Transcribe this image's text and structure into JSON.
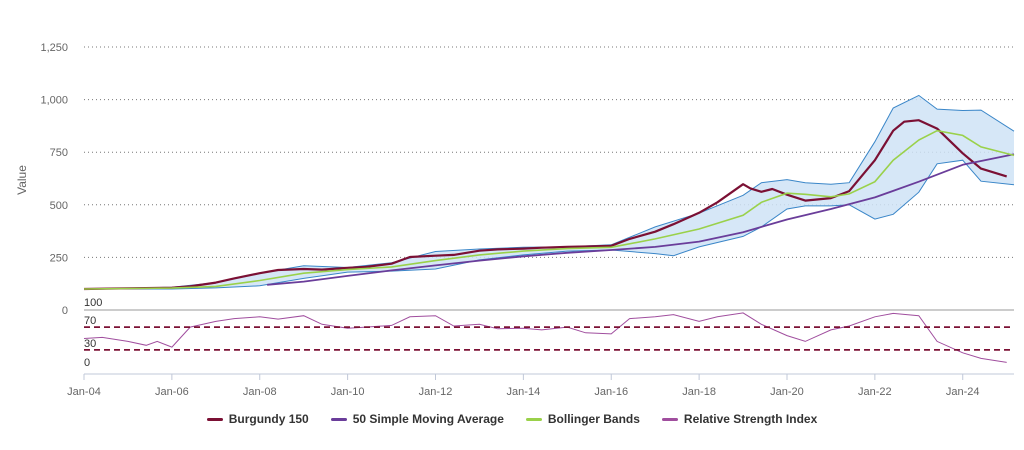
{
  "chart_data": {
    "type": "line",
    "ylabel": "Value",
    "x_ticks": [
      "Jan-04",
      "Jan-06",
      "Jan-08",
      "Jan-10",
      "Jan-12",
      "Jan-14",
      "Jan-16",
      "Jan-18",
      "Jan-20",
      "Jan-22",
      "Jan-24"
    ],
    "y_ticks": [
      "0",
      "250",
      "500",
      "750",
      "1,000",
      "1,250"
    ],
    "ylim": [
      0,
      1250
    ],
    "xlim": [
      "2004-01",
      "2025-03"
    ],
    "grid": true,
    "legend_position": "bottom-center",
    "rsi_ticks": [
      "100",
      "70",
      "30",
      "0"
    ],
    "rsi_ylim": [
      0,
      100
    ],
    "rsi_reference_lines": [
      70,
      30
    ],
    "series": [
      {
        "name": "Burgundy 150",
        "color": "#7b1034",
        "type": "line",
        "points": [
          [
            "2004-01",
            100
          ],
          [
            "2005-01",
            103
          ],
          [
            "2006-01",
            106
          ],
          [
            "2006-06",
            112
          ],
          [
            "2007-01",
            130
          ],
          [
            "2007-06",
            150
          ],
          [
            "2008-01",
            175
          ],
          [
            "2008-06",
            190
          ],
          [
            "2009-01",
            195
          ],
          [
            "2009-06",
            192
          ],
          [
            "2010-01",
            200
          ],
          [
            "2010-06",
            205
          ],
          [
            "2011-01",
            220
          ],
          [
            "2011-06",
            252
          ],
          [
            "2012-01",
            258
          ],
          [
            "2012-06",
            262
          ],
          [
            "2013-01",
            282
          ],
          [
            "2013-06",
            288
          ],
          [
            "2014-01",
            292
          ],
          [
            "2014-06",
            296
          ],
          [
            "2015-01",
            300
          ],
          [
            "2015-06",
            302
          ],
          [
            "2016-01",
            305
          ],
          [
            "2016-06",
            338
          ],
          [
            "2017-01",
            372
          ],
          [
            "2017-06",
            408
          ],
          [
            "2018-01",
            462
          ],
          [
            "2018-06",
            512
          ],
          [
            "2019-01",
            598
          ],
          [
            "2019-03",
            578
          ],
          [
            "2019-06",
            562
          ],
          [
            "2019-09",
            575
          ],
          [
            "2020-01",
            548
          ],
          [
            "2020-06",
            520
          ],
          [
            "2021-01",
            532
          ],
          [
            "2021-06",
            565
          ],
          [
            "2022-01",
            712
          ],
          [
            "2022-06",
            852
          ],
          [
            "2022-09",
            895
          ],
          [
            "2023-01",
            902
          ],
          [
            "2023-06",
            862
          ],
          [
            "2024-01",
            745
          ],
          [
            "2024-06",
            672
          ],
          [
            "2025-01",
            635
          ]
        ]
      },
      {
        "name": "50 Simple Moving Average",
        "color": "#6a3d9a",
        "type": "line",
        "points": [
          [
            "2008-03",
            120
          ],
          [
            "2009-01",
            135
          ],
          [
            "2010-01",
            162
          ],
          [
            "2011-01",
            188
          ],
          [
            "2012-01",
            212
          ],
          [
            "2013-01",
            235
          ],
          [
            "2014-01",
            255
          ],
          [
            "2015-01",
            272
          ],
          [
            "2016-01",
            285
          ],
          [
            "2017-01",
            300
          ],
          [
            "2018-01",
            325
          ],
          [
            "2019-01",
            370
          ],
          [
            "2020-01",
            430
          ],
          [
            "2021-01",
            480
          ],
          [
            "2022-01",
            535
          ],
          [
            "2023-01",
            610
          ],
          [
            "2024-01",
            690
          ],
          [
            "2025-03",
            740
          ]
        ]
      },
      {
        "name": "Bollinger Bands",
        "color": "#9ad14a",
        "type": "band",
        "middle": [
          [
            "2004-01",
            100
          ],
          [
            "2005-01",
            102
          ],
          [
            "2006-01",
            104
          ],
          [
            "2007-01",
            112
          ],
          [
            "2008-01",
            140
          ],
          [
            "2009-01",
            175
          ],
          [
            "2010-01",
            192
          ],
          [
            "2011-01",
            205
          ],
          [
            "2012-01",
            235
          ],
          [
            "2013-01",
            262
          ],
          [
            "2014-01",
            280
          ],
          [
            "2015-01",
            292
          ],
          [
            "2016-01",
            298
          ],
          [
            "2017-01",
            338
          ],
          [
            "2018-01",
            385
          ],
          [
            "2019-01",
            450
          ],
          [
            "2019-06",
            512
          ],
          [
            "2020-01",
            555
          ],
          [
            "2020-06",
            550
          ],
          [
            "2021-01",
            538
          ],
          [
            "2021-06",
            552
          ],
          [
            "2022-01",
            610
          ],
          [
            "2022-06",
            712
          ],
          [
            "2023-01",
            808
          ],
          [
            "2023-06",
            852
          ],
          [
            "2024-01",
            830
          ],
          [
            "2024-06",
            775
          ],
          [
            "2025-03",
            735
          ]
        ],
        "upper": [
          [
            "2004-01",
            100
          ],
          [
            "2006-01",
            108
          ],
          [
            "2007-01",
            130
          ],
          [
            "2008-01",
            175
          ],
          [
            "2009-01",
            210
          ],
          [
            "2010-01",
            202
          ],
          [
            "2011-01",
            225
          ],
          [
            "2012-01",
            278
          ],
          [
            "2013-01",
            290
          ],
          [
            "2014-01",
            298
          ],
          [
            "2015-01",
            300
          ],
          [
            "2016-01",
            310
          ],
          [
            "2017-01",
            395
          ],
          [
            "2018-01",
            460
          ],
          [
            "2019-01",
            545
          ],
          [
            "2019-06",
            605
          ],
          [
            "2020-01",
            620
          ],
          [
            "2020-06",
            605
          ],
          [
            "2021-01",
            598
          ],
          [
            "2021-06",
            605
          ],
          [
            "2022-01",
            800
          ],
          [
            "2022-06",
            960
          ],
          [
            "2023-01",
            1020
          ],
          [
            "2023-06",
            955
          ],
          [
            "2024-01",
            948
          ],
          [
            "2024-06",
            950
          ],
          [
            "2025-03",
            850
          ]
        ],
        "lower": [
          [
            "2004-01",
            100
          ],
          [
            "2006-01",
            100
          ],
          [
            "2007-01",
            105
          ],
          [
            "2008-01",
            115
          ],
          [
            "2009-01",
            150
          ],
          [
            "2010-01",
            180
          ],
          [
            "2011-01",
            185
          ],
          [
            "2012-01",
            195
          ],
          [
            "2013-01",
            238
          ],
          [
            "2014-01",
            262
          ],
          [
            "2015-01",
            280
          ],
          [
            "2016-01",
            285
          ],
          [
            "2017-01",
            268
          ],
          [
            "2017-06",
            258
          ],
          [
            "2018-01",
            300
          ],
          [
            "2019-01",
            350
          ],
          [
            "2019-06",
            395
          ],
          [
            "2020-01",
            480
          ],
          [
            "2020-06",
            495
          ],
          [
            "2021-01",
            495
          ],
          [
            "2021-06",
            500
          ],
          [
            "2022-01",
            432
          ],
          [
            "2022-06",
            455
          ],
          [
            "2023-01",
            560
          ],
          [
            "2023-06",
            695
          ],
          [
            "2024-01",
            712
          ],
          [
            "2024-06",
            612
          ],
          [
            "2025-03",
            595
          ]
        ]
      },
      {
        "name": "Relative Strength Index",
        "color": "#a04e9e",
        "type": "rsi",
        "points": [
          [
            "2004-01",
            50
          ],
          [
            "2004-06",
            52
          ],
          [
            "2005-01",
            45
          ],
          [
            "2005-06",
            38
          ],
          [
            "2005-09",
            45
          ],
          [
            "2006-01",
            35
          ],
          [
            "2006-06",
            70
          ],
          [
            "2007-01",
            80
          ],
          [
            "2007-06",
            85
          ],
          [
            "2008-01",
            88
          ],
          [
            "2008-06",
            84
          ],
          [
            "2009-01",
            90
          ],
          [
            "2009-06",
            75
          ],
          [
            "2010-01",
            68
          ],
          [
            "2010-06",
            70
          ],
          [
            "2011-01",
            73
          ],
          [
            "2011-06",
            88
          ],
          [
            "2012-01",
            90
          ],
          [
            "2012-06",
            72
          ],
          [
            "2013-01",
            75
          ],
          [
            "2013-06",
            67
          ],
          [
            "2014-01",
            68
          ],
          [
            "2014-06",
            65
          ],
          [
            "2015-01",
            70
          ],
          [
            "2015-06",
            60
          ],
          [
            "2016-01",
            58
          ],
          [
            "2016-06",
            85
          ],
          [
            "2017-01",
            88
          ],
          [
            "2017-06",
            92
          ],
          [
            "2018-01",
            80
          ],
          [
            "2018-06",
            88
          ],
          [
            "2019-01",
            95
          ],
          [
            "2019-06",
            75
          ],
          [
            "2020-01",
            55
          ],
          [
            "2020-06",
            45
          ],
          [
            "2021-01",
            65
          ],
          [
            "2021-06",
            72
          ],
          [
            "2022-01",
            88
          ],
          [
            "2022-06",
            94
          ],
          [
            "2023-01",
            90
          ],
          [
            "2023-06",
            45
          ],
          [
            "2024-01",
            25
          ],
          [
            "2024-06",
            15
          ],
          [
            "2025-01",
            8
          ]
        ]
      }
    ]
  }
}
